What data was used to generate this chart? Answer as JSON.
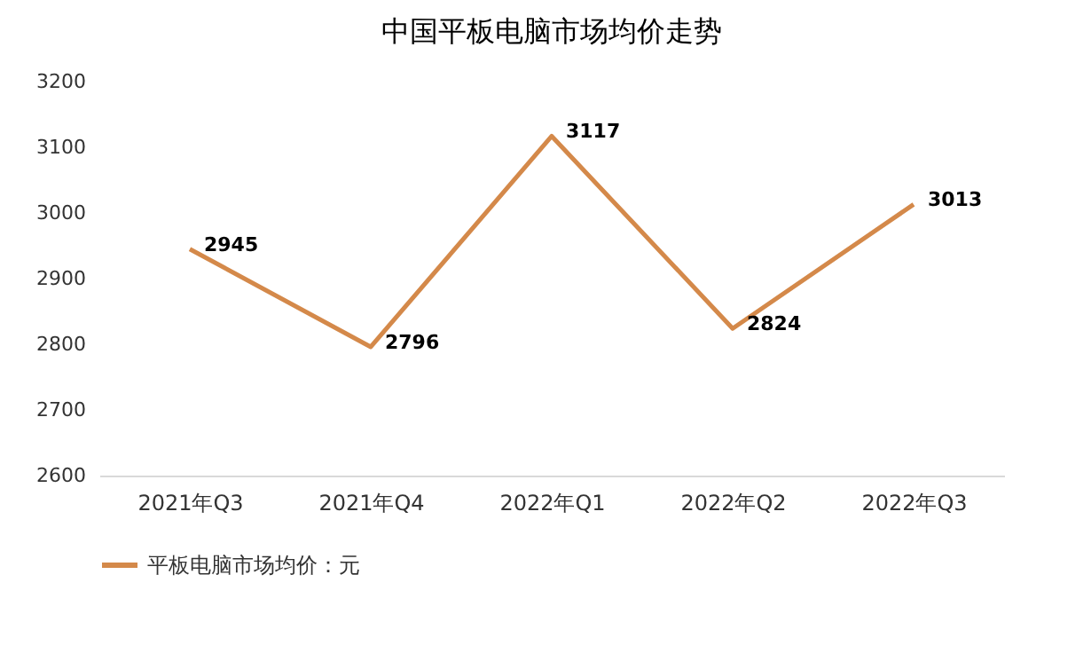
{
  "chart_data": {
    "type": "line",
    "title": "中国平板电脑市场均价走势",
    "categories": [
      "2021年Q3",
      "2021年Q4",
      "2022年Q1",
      "2022年Q2",
      "2022年Q3"
    ],
    "series": [
      {
        "name": "平板电脑市场均价：元",
        "color": "#d4894a",
        "values": [
          2945,
          2796,
          3117,
          2824,
          3013
        ]
      }
    ],
    "ylim": [
      2600,
      3200
    ],
    "yticks": [
      2600,
      2700,
      2800,
      2900,
      3000,
      3100,
      3200
    ],
    "data_labels": true,
    "legend": "bottom",
    "marker": "none",
    "line_style": "solid"
  }
}
